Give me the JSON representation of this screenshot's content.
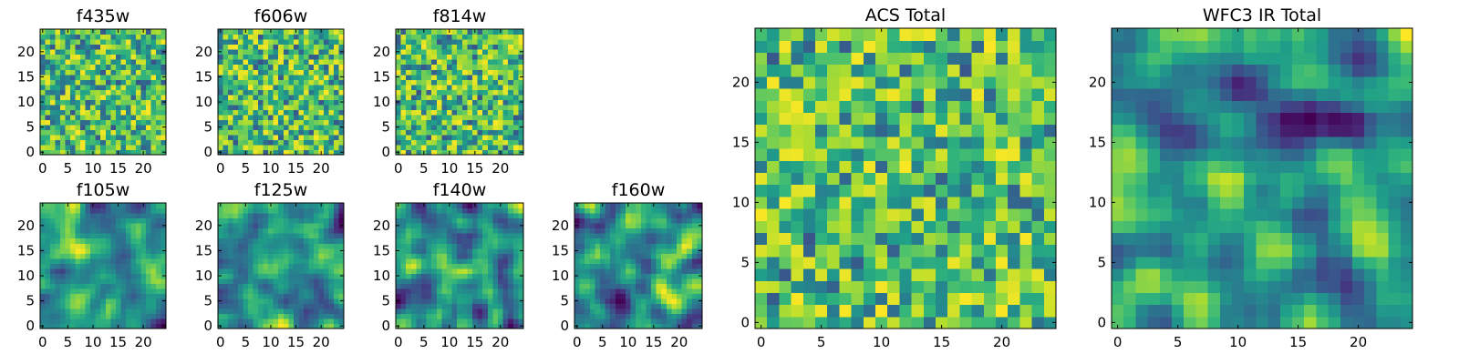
{
  "chart_data": {
    "type": "heatmap",
    "colormap": "viridis",
    "grid": false,
    "panels": [
      {
        "id": "f435w",
        "title": "f435w",
        "xlim": [
          0,
          24
        ],
        "ylim": [
          0,
          24
        ],
        "xticks": [
          0,
          5,
          10,
          15,
          20
        ],
        "yticks": [
          0,
          5,
          10,
          15,
          20
        ],
        "pattern": "noisy",
        "seed": 11
      },
      {
        "id": "f606w",
        "title": "f606w",
        "xlim": [
          0,
          24
        ],
        "ylim": [
          0,
          24
        ],
        "xticks": [
          0,
          5,
          10,
          15,
          20
        ],
        "yticks": [
          0,
          5,
          10,
          15,
          20
        ],
        "pattern": "noisy",
        "seed": 23
      },
      {
        "id": "f814w",
        "title": "f814w",
        "xlim": [
          0,
          24
        ],
        "ylim": [
          0,
          24
        ],
        "xticks": [
          0,
          5,
          10,
          15,
          20
        ],
        "yticks": [
          0,
          5,
          10,
          15,
          20
        ],
        "pattern": "noisy",
        "seed": 37
      },
      {
        "id": "f105w",
        "title": "f105w",
        "xlim": [
          0,
          24
        ],
        "ylim": [
          0,
          24
        ],
        "xticks": [
          0,
          5,
          10,
          15,
          20
        ],
        "yticks": [
          0,
          5,
          10,
          15,
          20
        ],
        "pattern": "smooth",
        "seed": 41
      },
      {
        "id": "f125w",
        "title": "f125w",
        "xlim": [
          0,
          24
        ],
        "ylim": [
          0,
          24
        ],
        "xticks": [
          0,
          5,
          10,
          15,
          20
        ],
        "yticks": [
          0,
          5,
          10,
          15,
          20
        ],
        "pattern": "smooth",
        "seed": 53
      },
      {
        "id": "f140w",
        "title": "f140w",
        "xlim": [
          0,
          24
        ],
        "ylim": [
          0,
          24
        ],
        "xticks": [
          0,
          5,
          10,
          15,
          20
        ],
        "yticks": [
          0,
          5,
          10,
          15,
          20
        ],
        "pattern": "smooth",
        "seed": 67
      },
      {
        "id": "f160w",
        "title": "f160w",
        "xlim": [
          0,
          24
        ],
        "ylim": [
          0,
          24
        ],
        "xticks": [
          0,
          5,
          10,
          15,
          20
        ],
        "yticks": [
          0,
          5,
          10,
          15,
          20
        ],
        "pattern": "smooth",
        "seed": 79
      },
      {
        "id": "acs_total",
        "title": "ACS Total",
        "xlim": [
          0,
          24
        ],
        "ylim": [
          0,
          24
        ],
        "xticks": [
          0,
          5,
          10,
          15,
          20
        ],
        "yticks": [
          0,
          5,
          10,
          15,
          20
        ],
        "pattern": "noisy",
        "seed": 83
      },
      {
        "id": "wfc3_ir_total",
        "title": "WFC3 IR Total",
        "xlim": [
          0,
          24
        ],
        "ylim": [
          0,
          24
        ],
        "xticks": [
          0,
          5,
          10,
          15,
          20
        ],
        "yticks": [
          0,
          5,
          10,
          15,
          20
        ],
        "pattern": "smooth",
        "seed": 97
      }
    ]
  }
}
